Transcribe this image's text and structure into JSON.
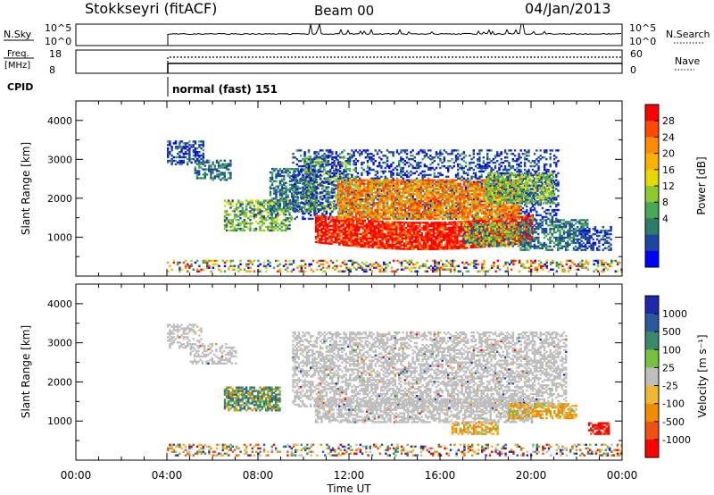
{
  "header": {
    "station": "Stokkseyri (fitACF)",
    "beam": "Beam 00",
    "date": "04/Jan/2013"
  },
  "nsky_panel": {
    "left_label": "N.Sky",
    "left_ticks": [
      "10^5",
      "10^0"
    ],
    "right_ticks": [
      "10^5",
      "10^0"
    ],
    "right_label": "N.Search"
  },
  "freq_panel": {
    "left_label_1": "Freq.",
    "left_label_2": "[MHz]",
    "left_ticks": [
      "18",
      "8"
    ],
    "right_ticks": [
      "60",
      "0"
    ],
    "right_label": "Nave"
  },
  "cpid": {
    "label": "CPID",
    "value": "normal (fast) 151"
  },
  "power_colorbar": {
    "label": "Power [dB]",
    "ticks": [
      "28",
      "24",
      "20",
      "16",
      "12",
      "8",
      "4"
    ],
    "colors": [
      "#ff0000",
      "#ff4800",
      "#ff8c00",
      "#ffb000",
      "#e8d800",
      "#90c830",
      "#48a858",
      "#2c7c68",
      "#1e46a0",
      "#0000ff"
    ]
  },
  "velocity_colorbar": {
    "label": "Velocity [m s⁻¹]",
    "ticks": [
      "1000",
      "500",
      "100",
      "25",
      "-25",
      "-100",
      "-500",
      "-1000"
    ],
    "colors": [
      "#1e28a8",
      "#2a5a9c",
      "#3a8a6a",
      "#78c040",
      "#bebebe",
      "#f0b830",
      "#f08c00",
      "#f05010",
      "#ff0000"
    ]
  },
  "chart_data": [
    {
      "type": "heatmap",
      "ylabel": "Slant Range [km]",
      "xlim": [
        "00:00",
        "00:00"
      ],
      "ylim": [
        0,
        4500
      ],
      "yticks": [
        "4000",
        "3000",
        "2000",
        "1000"
      ],
      "colorbar": "Power [dB]"
    },
    {
      "type": "heatmap",
      "xlabel": "Time UT",
      "ylabel": "Slant Range [km]",
      "xticks": [
        "00:00",
        "04:00",
        "08:00",
        "12:00",
        "16:00",
        "20:00",
        "00:00"
      ],
      "ylim": [
        0,
        4500
      ],
      "yticks": [
        "4000",
        "3000",
        "2000",
        "1000"
      ],
      "colorbar": "Velocity [m s⁻¹]"
    }
  ]
}
